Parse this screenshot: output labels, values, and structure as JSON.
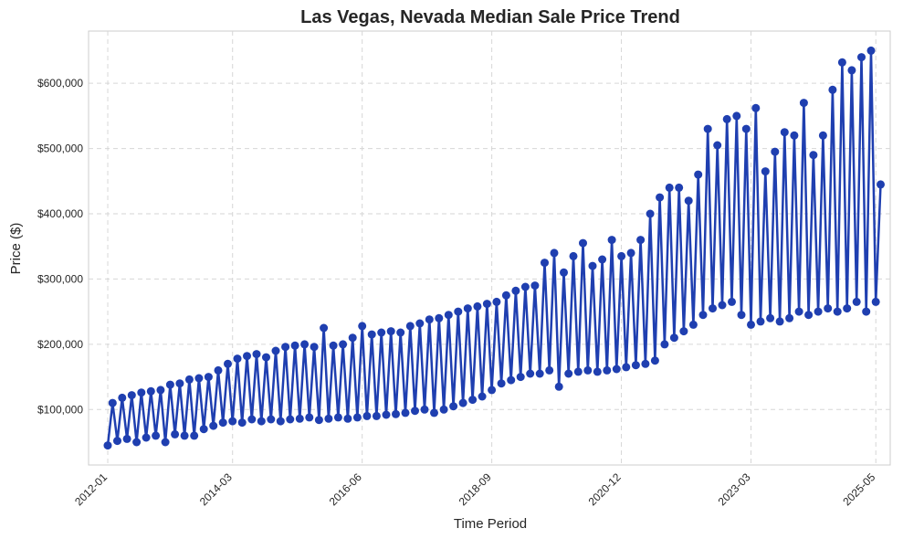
{
  "chart_data": {
    "type": "line",
    "title": "Las Vegas, Nevada Median Sale Price Trend",
    "xlabel": "Time Period",
    "ylabel": "Price ($)",
    "x_tick_labels": [
      "2012-01",
      "2014-03",
      "2016-06",
      "2018-09",
      "2020-12",
      "2023-03",
      "2025-05"
    ],
    "y_ticks": [
      100000,
      200000,
      300000,
      400000,
      500000,
      600000
    ],
    "y_tick_labels": [
      "$100,000",
      "$200,000",
      "$300,000",
      "$400,000",
      "$500,000",
      "$600,000"
    ],
    "xlim": [
      "2011-09",
      "2025-08"
    ],
    "ylim": [
      15000,
      680000
    ],
    "grid": true,
    "color": "#1f3fb0",
    "series": [
      {
        "points": [
          [
            "2012-01",
            45000
          ],
          [
            "2012-02",
            110000
          ],
          [
            "2012-03",
            52000
          ],
          [
            "2012-04",
            118000
          ],
          [
            "2012-05",
            55000
          ],
          [
            "2012-06",
            122000
          ],
          [
            "2012-07",
            50000
          ],
          [
            "2012-08",
            126000
          ],
          [
            "2012-09",
            57000
          ],
          [
            "2012-10",
            128000
          ],
          [
            "2012-11",
            60000
          ],
          [
            "2012-12",
            130000
          ],
          [
            "2013-01",
            50000
          ],
          [
            "2013-02",
            138000
          ],
          [
            "2013-03",
            62000
          ],
          [
            "2013-04",
            140000
          ],
          [
            "2013-05",
            60000
          ],
          [
            "2013-06",
            146000
          ],
          [
            "2013-07",
            60000
          ],
          [
            "2013-08",
            148000
          ],
          [
            "2013-09",
            70000
          ],
          [
            "2013-10",
            150000
          ],
          [
            "2013-11",
            75000
          ],
          [
            "2013-12",
            160000
          ],
          [
            "2014-01",
            80000
          ],
          [
            "2014-02",
            170000
          ],
          [
            "2014-03",
            82000
          ],
          [
            "2014-04",
            178000
          ],
          [
            "2014-05",
            80000
          ],
          [
            "2014-06",
            182000
          ],
          [
            "2014-07",
            85000
          ],
          [
            "2014-08",
            185000
          ],
          [
            "2014-09",
            82000
          ],
          [
            "2014-10",
            180000
          ],
          [
            "2014-11",
            85000
          ],
          [
            "2014-12",
            190000
          ],
          [
            "2015-01",
            82000
          ],
          [
            "2015-02",
            196000
          ],
          [
            "2015-03",
            85000
          ],
          [
            "2015-04",
            198000
          ],
          [
            "2015-05",
            86000
          ],
          [
            "2015-06",
            200000
          ],
          [
            "2015-07",
            88000
          ],
          [
            "2015-08",
            196000
          ],
          [
            "2015-09",
            84000
          ],
          [
            "2015-10",
            225000
          ],
          [
            "2015-11",
            86000
          ],
          [
            "2015-12",
            198000
          ],
          [
            "2016-01",
            88000
          ],
          [
            "2016-02",
            200000
          ],
          [
            "2016-03",
            86000
          ],
          [
            "2016-04",
            210000
          ],
          [
            "2016-05",
            88000
          ],
          [
            "2016-06",
            228000
          ],
          [
            "2016-07",
            90000
          ],
          [
            "2016-08",
            215000
          ],
          [
            "2016-09",
            90000
          ],
          [
            "2016-10",
            218000
          ],
          [
            "2016-11",
            92000
          ],
          [
            "2016-12",
            220000
          ],
          [
            "2017-01",
            93000
          ],
          [
            "2017-02",
            218000
          ],
          [
            "2017-03",
            95000
          ],
          [
            "2017-04",
            228000
          ],
          [
            "2017-05",
            98000
          ],
          [
            "2017-06",
            232000
          ],
          [
            "2017-07",
            100000
          ],
          [
            "2017-08",
            238000
          ],
          [
            "2017-09",
            95000
          ],
          [
            "2017-10",
            240000
          ],
          [
            "2017-11",
            100000
          ],
          [
            "2017-12",
            245000
          ],
          [
            "2018-01",
            105000
          ],
          [
            "2018-02",
            250000
          ],
          [
            "2018-03",
            110000
          ],
          [
            "2018-04",
            255000
          ],
          [
            "2018-05",
            115000
          ],
          [
            "2018-06",
            258000
          ],
          [
            "2018-07",
            120000
          ],
          [
            "2018-08",
            262000
          ],
          [
            "2018-09",
            130000
          ],
          [
            "2018-10",
            265000
          ],
          [
            "2018-11",
            140000
          ],
          [
            "2018-12",
            275000
          ],
          [
            "2019-01",
            145000
          ],
          [
            "2019-02",
            282000
          ],
          [
            "2019-03",
            150000
          ],
          [
            "2019-04",
            288000
          ],
          [
            "2019-05",
            155000
          ],
          [
            "2019-06",
            290000
          ],
          [
            "2019-07",
            155000
          ],
          [
            "2019-08",
            325000
          ],
          [
            "2019-09",
            160000
          ],
          [
            "2019-10",
            340000
          ],
          [
            "2019-11",
            135000
          ],
          [
            "2019-12",
            310000
          ],
          [
            "2020-01",
            155000
          ],
          [
            "2020-02",
            335000
          ],
          [
            "2020-03",
            158000
          ],
          [
            "2020-04",
            355000
          ],
          [
            "2020-05",
            160000
          ],
          [
            "2020-06",
            320000
          ],
          [
            "2020-07",
            158000
          ],
          [
            "2020-08",
            330000
          ],
          [
            "2020-09",
            160000
          ],
          [
            "2020-10",
            360000
          ],
          [
            "2020-11",
            162000
          ],
          [
            "2020-12",
            335000
          ],
          [
            "2021-01",
            165000
          ],
          [
            "2021-02",
            340000
          ],
          [
            "2021-03",
            168000
          ],
          [
            "2021-04",
            360000
          ],
          [
            "2021-05",
            170000
          ],
          [
            "2021-06",
            400000
          ],
          [
            "2021-07",
            175000
          ],
          [
            "2021-08",
            425000
          ],
          [
            "2021-09",
            200000
          ],
          [
            "2021-10",
            440000
          ],
          [
            "2021-11",
            210000
          ],
          [
            "2021-12",
            440000
          ],
          [
            "2022-01",
            220000
          ],
          [
            "2022-02",
            420000
          ],
          [
            "2022-03",
            230000
          ],
          [
            "2022-04",
            460000
          ],
          [
            "2022-05",
            245000
          ],
          [
            "2022-06",
            530000
          ],
          [
            "2022-07",
            255000
          ],
          [
            "2022-08",
            505000
          ],
          [
            "2022-09",
            260000
          ],
          [
            "2022-10",
            545000
          ],
          [
            "2022-11",
            265000
          ],
          [
            "2022-12",
            550000
          ],
          [
            "2023-01",
            245000
          ],
          [
            "2023-02",
            530000
          ],
          [
            "2023-03",
            230000
          ],
          [
            "2023-04",
            562000
          ],
          [
            "2023-05",
            235000
          ],
          [
            "2023-06",
            465000
          ],
          [
            "2023-07",
            240000
          ],
          [
            "2023-08",
            495000
          ],
          [
            "2023-09",
            235000
          ],
          [
            "2023-10",
            525000
          ],
          [
            "2023-11",
            240000
          ],
          [
            "2023-12",
            520000
          ],
          [
            "2024-01",
            250000
          ],
          [
            "2024-02",
            570000
          ],
          [
            "2024-03",
            245000
          ],
          [
            "2024-04",
            490000
          ],
          [
            "2024-05",
            250000
          ],
          [
            "2024-06",
            520000
          ],
          [
            "2024-07",
            255000
          ],
          [
            "2024-08",
            590000
          ],
          [
            "2024-09",
            250000
          ],
          [
            "2024-10",
            632000
          ],
          [
            "2024-11",
            255000
          ],
          [
            "2024-12",
            620000
          ],
          [
            "2025-01",
            265000
          ],
          [
            "2025-02",
            640000
          ],
          [
            "2025-03",
            250000
          ],
          [
            "2025-04",
            650000
          ],
          [
            "2025-05",
            265000
          ],
          [
            "2025-06",
            445000
          ]
        ]
      }
    ]
  }
}
